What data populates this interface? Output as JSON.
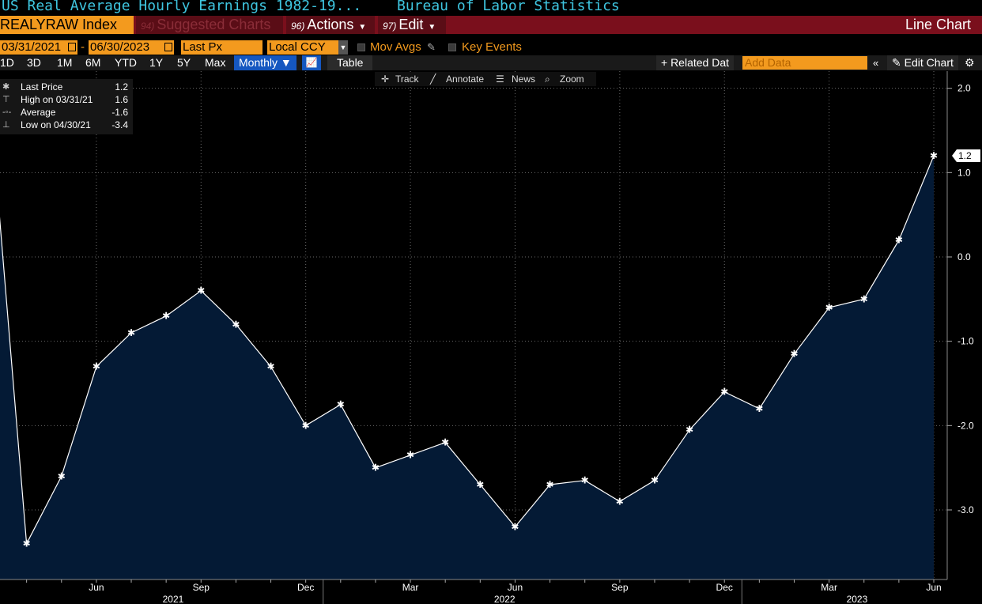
{
  "header": {
    "title": "US Real Average Hourly Earnings 1982-19...",
    "source": "Bureau of Labor Statistics",
    "ticker": "REALYRAW Index",
    "menu_suggested_num": "94)",
    "menu_suggested": "Suggested Charts",
    "menu_actions_num": "96)",
    "menu_actions": "Actions",
    "menu_edit_num": "97)",
    "menu_edit": "Edit",
    "chart_type_label": "Line Chart"
  },
  "controls": {
    "start_date": "03/31/2021",
    "end_date": "06/30/2023",
    "date_sep": "-",
    "field": "Last Px",
    "currency": "Local CCY",
    "mov_avgs": "Mov Avgs",
    "key_events": "Key Events"
  },
  "toolbar": {
    "ranges": [
      "1D",
      "3D",
      "1M",
      "6M",
      "YTD",
      "1Y",
      "5Y",
      "Max"
    ],
    "frequency": "Monthly ▼",
    "table": "Table",
    "related": "+ Related Dat",
    "add_data_placeholder": "Add Data",
    "edit_chart": "Edit Chart"
  },
  "tools": {
    "track": "Track",
    "annotate": "Annotate",
    "news": "News",
    "zoom": "Zoom"
  },
  "legend": [
    {
      "label": "Last Price",
      "value": "1.2"
    },
    {
      "label": "High on 03/31/21",
      "value": "1.6"
    },
    {
      "label": "Average",
      "value": "-1.6"
    },
    {
      "label": "Low on 04/30/21",
      "value": "-3.4"
    }
  ],
  "colors": {
    "accent_orange": "#f39a1e",
    "menu_red": "#7a0f1c",
    "title_cyan": "#3fc6e0",
    "area_fill": "#041a35",
    "line": "#ffffff"
  },
  "chart_data": {
    "type": "area",
    "x": [
      "2021-03",
      "2021-04",
      "2021-05",
      "2021-06",
      "2021-07",
      "2021-08",
      "2021-09",
      "2021-10",
      "2021-11",
      "2021-12",
      "2022-01",
      "2022-02",
      "2022-03",
      "2022-04",
      "2022-05",
      "2022-06",
      "2022-07",
      "2022-08",
      "2022-09",
      "2022-10",
      "2022-11",
      "2022-12",
      "2023-01",
      "2023-02",
      "2023-03",
      "2023-04",
      "2023-05",
      "2023-06"
    ],
    "series": [
      {
        "values": [
          1.6,
          -3.4,
          -2.6,
          -1.3,
          -0.9,
          -0.7,
          -0.4,
          -0.8,
          -1.3,
          -2.0,
          -1.75,
          -2.5,
          -2.35,
          -2.2,
          -2.7,
          -3.2,
          -2.7,
          -2.65,
          -2.9,
          -2.65,
          -2.05,
          -1.6,
          -1.8,
          -1.15,
          -0.6,
          -0.5,
          0.2,
          1.2
        ]
      }
    ],
    "ylim": [
      -3.9,
      2.1
    ],
    "y_ticks": [
      "2.0",
      "1.0",
      "0.0",
      "-1.0",
      "-2.0",
      "-3.0"
    ],
    "x_ticks": [
      "Jun",
      "Sep",
      "Dec",
      "Mar",
      "Jun",
      "Sep",
      "Dec",
      "Mar",
      "Jun"
    ],
    "year_labels": [
      "2021",
      "2022",
      "2023"
    ],
    "last_value_label": "1.2",
    "grid": true
  }
}
